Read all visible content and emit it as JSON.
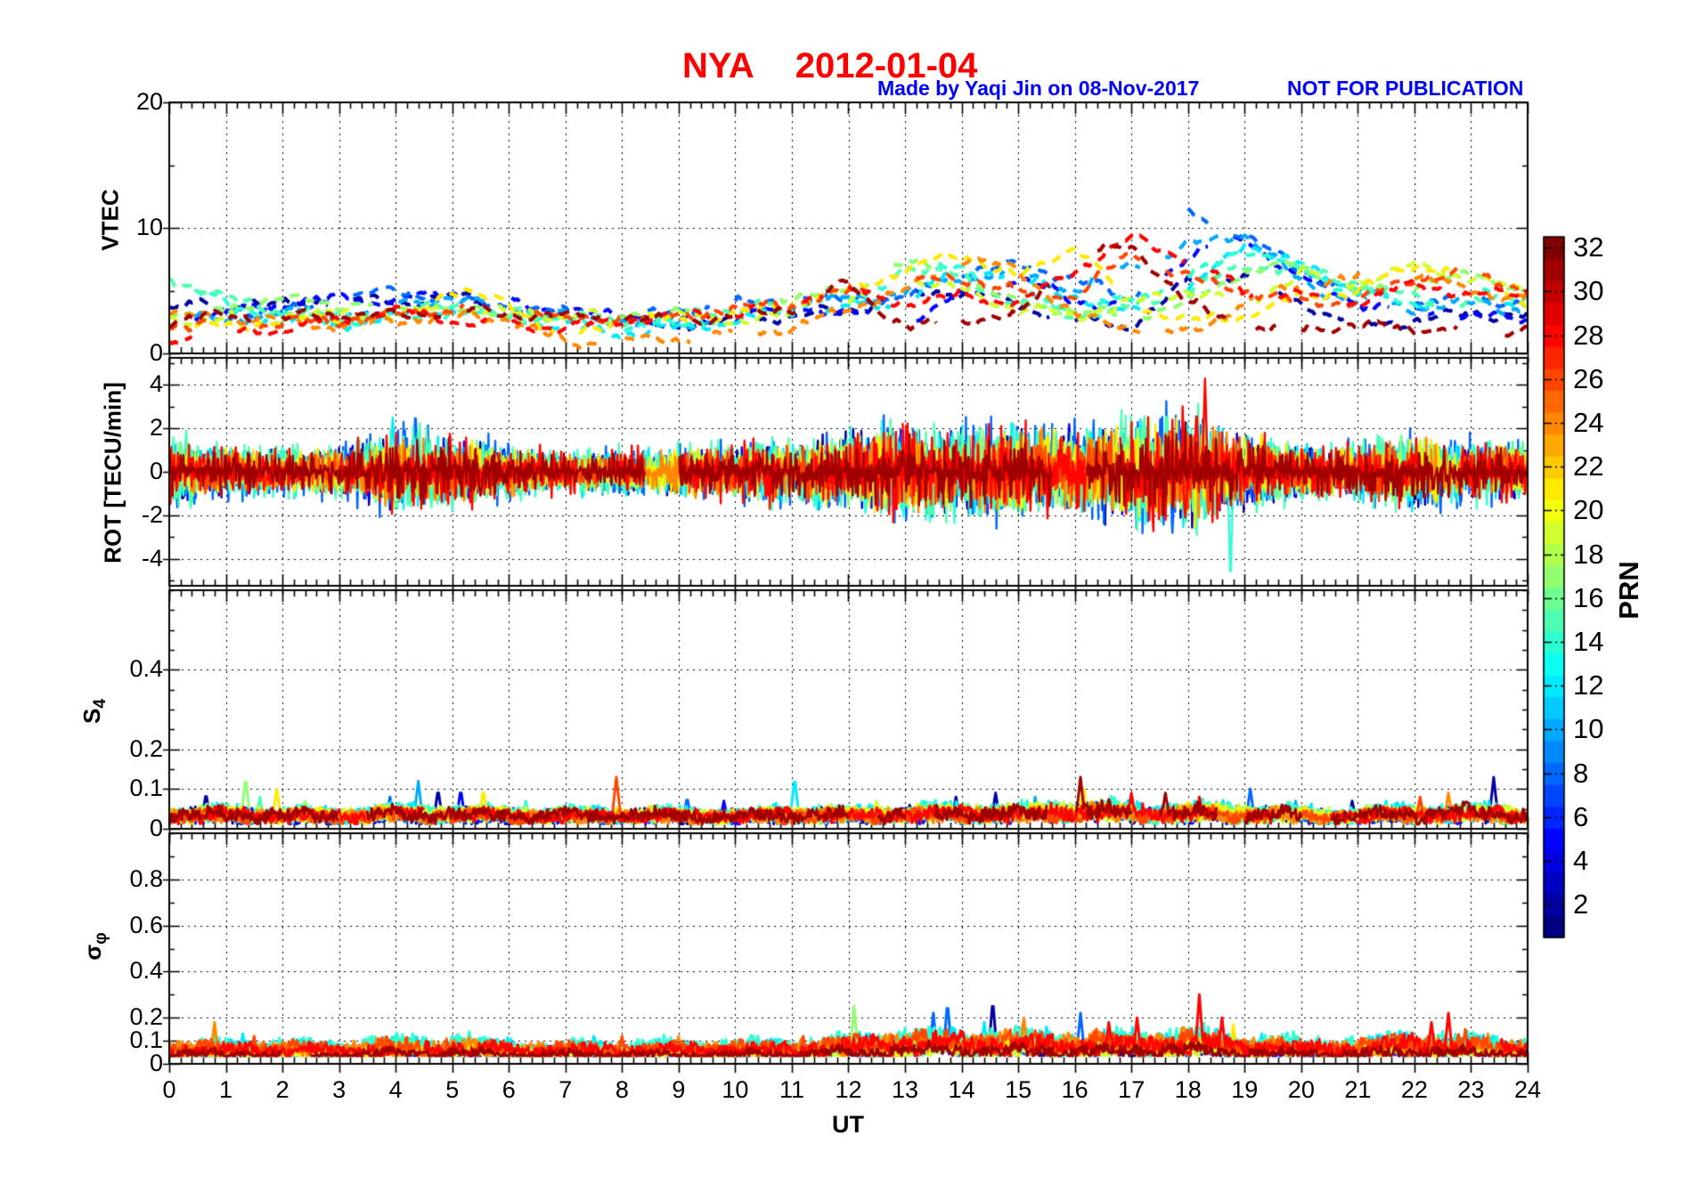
{
  "header": {
    "station": "NYA",
    "date": "2012-01-04",
    "credit": "Made by Yaqi Jin on 08-Nov-2017",
    "notice": "NOT FOR PUBLICATION"
  },
  "colors": {
    "title": "#ff0000",
    "annotation": "#0000ff",
    "axis": "#000000",
    "background": "#ffffff"
  },
  "chart_data": {
    "type": "line",
    "title": "NYA   2012-01-04",
    "station": "NYA",
    "date": "2012-01-04",
    "x": {
      "label": "UT",
      "min": 0,
      "max": 24,
      "tick_step": 1,
      "minor_step": 0.2,
      "tick_labels": [
        "0",
        "1",
        "2",
        "3",
        "4",
        "5",
        "6",
        "7",
        "8",
        "9",
        "10",
        "11",
        "12",
        "13",
        "14",
        "15",
        "16",
        "17",
        "18",
        "19",
        "20",
        "21",
        "22",
        "23",
        "24"
      ]
    },
    "colorbar": {
      "label": "PRN",
      "colormap": "jet",
      "levels": 32,
      "min": 1,
      "max": 32,
      "tick_values": [
        2,
        4,
        6,
        8,
        10,
        12,
        14,
        16,
        18,
        20,
        22,
        24,
        26,
        28,
        30,
        32
      ],
      "tick_labels": [
        "2",
        "4",
        "6",
        "8",
        "10",
        "12",
        "14",
        "16",
        "18",
        "20",
        "22",
        "24",
        "26",
        "28",
        "30",
        "32"
      ]
    },
    "panels": [
      {
        "key": "vtec",
        "ylabel": "VTEC",
        "ymin": 0,
        "ymax": 20,
        "yticks": [
          0,
          10,
          20
        ],
        "ytick_labels": [
          "0",
          "10",
          "20"
        ],
        "minor_step": 5,
        "grid": [
          10
        ],
        "line_style": "dashed"
      },
      {
        "key": "rot",
        "ylabel": "ROT [TECU/min]",
        "ymin": -5.25,
        "ymax": 5.25,
        "yticks": [
          -4,
          -2,
          0,
          2,
          4
        ],
        "ytick_labels": [
          "-4",
          "-2",
          "0",
          "2",
          "4"
        ],
        "minor_step": 1,
        "grid": [
          -4,
          -2,
          0,
          2,
          4
        ],
        "line_style": "solid"
      },
      {
        "key": "s4",
        "ylabel_main": "S",
        "ylabel_sub": "4",
        "ymin": 0,
        "ymax": 0.6,
        "yticks": [
          0,
          0.1,
          0.2,
          0.4
        ],
        "ytick_labels": [
          "0",
          "0.1",
          "0.2",
          "0.4"
        ],
        "minor_step": 0.05,
        "grid": [
          0.1,
          0.2,
          0.4
        ],
        "line_style": "solid"
      },
      {
        "key": "sigma",
        "ylabel_main": "σ",
        "ylabel_sub": "φ",
        "ymin": 0,
        "ymax": 1.0,
        "yticks": [
          0,
          0.1,
          0.2,
          0.4,
          0.6,
          0.8
        ],
        "ytick_labels": [
          "0",
          "0.1",
          "0.2",
          "0.4",
          "0.6",
          "0.8"
        ],
        "minor_step": 0.1,
        "grid": [
          0.1,
          0.2,
          0.4,
          0.6,
          0.8
        ],
        "line_style": "solid"
      }
    ],
    "hours": [
      0,
      1,
      2,
      3,
      4,
      5,
      6,
      7,
      8,
      9,
      10,
      11,
      12,
      13,
      14,
      15,
      16,
      17,
      18,
      19,
      20,
      21,
      22,
      23,
      24
    ],
    "series": [
      {
        "prn": 2,
        "vtec": [
          3.5,
          4.2,
          3.8,
          4.5,
          4.0,
          4.6,
          3.6,
          null,
          2.5,
          2.2,
          2.6,
          3.0,
          3.4,
          4.6,
          5.0,
          3.8,
          2.6,
          2.2,
          5.8,
          6.2,
          4.0,
          2.2,
          2.6,
          3.2,
          3.0
        ],
        "rot_scale": 1.1,
        "s4_lvl": 0.9,
        "sig_lvl": 0.85
      },
      {
        "prn": 5,
        "vtec": [
          2.8,
          3.2,
          4.0,
          4.4,
          4.2,
          4.8,
          4.0,
          3.4,
          3.0,
          2.6,
          3.0,
          3.8,
          3.2,
          2.6,
          4.6,
          6.0,
          4.2,
          3.6,
          8.0,
          9.0,
          6.0,
          4.0,
          3.4,
          3.0,
          2.6
        ],
        "rot_scale": 1.0,
        "s4_lvl": 0.9,
        "sig_lvl": 0.85
      },
      {
        "prn": 8,
        "vtec": [
          4.0,
          3.6,
          3.2,
          4.4,
          5.0,
          4.2,
          3.8,
          3.2,
          2.8,
          3.4,
          4.0,
          4.4,
          4.2,
          4.4,
          6.6,
          7.0,
          6.0,
          4.2,
          11.0,
          9.5,
          6.5,
          5.0,
          4.2,
          4.4,
          4.0
        ],
        "rot_scale": 1.3,
        "s4_lvl": 0.9,
        "sig_lvl": 0.95
      },
      {
        "prn": 10,
        "vtec": [
          3.0,
          2.6,
          3.4,
          3.0,
          4.0,
          4.4,
          3.6,
          3.0,
          2.6,
          2.2,
          3.0,
          3.6,
          4.4,
          5.0,
          6.0,
          6.4,
          5.0,
          7.0,
          8.5,
          9.6,
          5.6,
          4.0,
          3.6,
          4.0,
          3.4
        ],
        "rot_scale": 0.9,
        "s4_lvl": 0.9,
        "sig_lvl": 1.0
      },
      {
        "prn": 12,
        "vtec": [
          5.0,
          3.0,
          2.6,
          2.2,
          3.0,
          3.6,
          2.6,
          2.2,
          1.6,
          2.0,
          2.6,
          3.0,
          3.6,
          4.0,
          7.0,
          6.0,
          4.6,
          3.2,
          5.0,
          8.8,
          7.0,
          5.0,
          4.0,
          4.4,
          4.0
        ],
        "rot_scale": 1.1,
        "s4_lvl": 1.1,
        "sig_lvl": 1.2
      },
      {
        "prn": 14,
        "vtec": [
          5.6,
          4.0,
          3.0,
          2.6,
          2.8,
          3.2,
          3.0,
          2.6,
          2.0,
          2.4,
          3.0,
          3.4,
          4.0,
          6.6,
          7.0,
          5.0,
          3.6,
          4.4,
          6.0,
          8.4,
          6.6,
          5.0,
          4.0,
          5.0,
          5.4
        ],
        "rot_scale": 1.2,
        "s4_lvl": 1.1,
        "sig_lvl": 1.3
      },
      {
        "prn": 15,
        "vtec": [
          6.0,
          4.4,
          3.4,
          3.0,
          3.4,
          4.0,
          3.4,
          3.0,
          2.6,
          3.0,
          3.6,
          4.0,
          4.6,
          7.0,
          6.0,
          4.0,
          3.0,
          3.6,
          5.0,
          7.0,
          6.6,
          5.6,
          4.4,
          4.0,
          4.6
        ],
        "rot_scale": 1.3,
        "s4_lvl": 1.0,
        "sig_lvl": 1.0
      },
      {
        "prn": 17,
        "vtec": [
          3.0,
          3.6,
          4.4,
          4.0,
          3.8,
          3.4,
          3.0,
          2.6,
          3.0,
          3.6,
          4.0,
          4.6,
          5.0,
          7.4,
          6.0,
          4.0,
          3.4,
          3.0,
          4.0,
          6.6,
          7.0,
          5.0,
          5.6,
          6.2,
          5.0
        ],
        "rot_scale": 1.0,
        "s4_lvl": 1.0,
        "sig_lvl": 0.9
      },
      {
        "prn": 19,
        "vtec": [
          2.6,
          2.8,
          3.0,
          3.2,
          3.0,
          3.6,
          3.2,
          3.0,
          3.4,
          3.0,
          2.6,
          3.0,
          4.0,
          6.0,
          5.0,
          3.6,
          3.0,
          4.0,
          5.0,
          4.0,
          6.4,
          5.6,
          7.0,
          6.0,
          5.0
        ],
        "rot_scale": 0.9,
        "s4_lvl": 1.0,
        "sig_lvl": 0.8
      },
      {
        "prn": 21,
        "vtec": [
          2.0,
          2.2,
          2.6,
          2.8,
          3.0,
          5.0,
          4.0,
          1.0,
          2.8,
          2.6,
          3.0,
          4.0,
          5.0,
          6.6,
          8.0,
          6.0,
          8.6,
          4.0,
          2.6,
          3.0,
          4.6,
          5.0,
          7.0,
          6.4,
          4.0
        ],
        "rot_scale": 1.0,
        "s4_lvl": 1.0,
        "sig_lvl": 0.9
      },
      {
        "prn": 24,
        "vtec": [
          3.0,
          2.8,
          2.6,
          2.2,
          2.6,
          3.0,
          2.8,
          0.8,
          1.0,
          1.2,
          1.6,
          2.0,
          3.6,
          5.0,
          7.6,
          6.6,
          3.0,
          2.0,
          1.6,
          4.0,
          5.6,
          6.0,
          6.2,
          5.0,
          4.4
        ],
        "rot_scale": 1.0,
        "s4_lvl": 0.9,
        "sig_lvl": 1.1
      },
      {
        "prn": 26,
        "vtec": [
          2.2,
          2.0,
          2.4,
          2.6,
          3.0,
          3.6,
          4.4,
          2.6,
          2.8,
          3.0,
          3.6,
          4.0,
          4.8,
          5.6,
          6.0,
          5.0,
          4.6,
          8.0,
          6.0,
          5.0,
          4.0,
          4.2,
          6.0,
          6.4,
          5.0
        ],
        "rot_scale": 0.9,
        "s4_lvl": 0.9,
        "sig_lvl": 1.15
      },
      {
        "prn": 28,
        "vtec": [
          1.2,
          1.6,
          2.0,
          2.6,
          3.4,
          2.6,
          2.2,
          2.0,
          2.6,
          3.0,
          3.2,
          4.4,
          5.0,
          4.0,
          4.6,
          4.0,
          6.6,
          9.2,
          7.6,
          5.0,
          4.6,
          4.0,
          5.6,
          4.6,
          5.0
        ],
        "rot_scale": 1.2,
        "s4_lvl": 0.95,
        "sig_lvl": 1.05
      },
      {
        "prn": 31,
        "vtec": [
          2.6,
          3.0,
          2.8,
          3.2,
          3.0,
          3.4,
          3.2,
          3.0,
          2.8,
          2.6,
          3.0,
          3.6,
          5.6,
          2.0,
          2.6,
          3.0,
          7.6,
          8.6,
          4.0,
          2.0,
          2.0,
          2.2,
          2.0,
          1.8,
          2.0
        ],
        "rot_scale": 0.9,
        "s4_lvl": 1.0,
        "sig_lvl": 0.7
      }
    ],
    "activity": {
      "rot": [
        0.7,
        0.55,
        0.5,
        0.55,
        0.9,
        0.8,
        0.6,
        0.45,
        0.5,
        0.55,
        0.6,
        0.75,
        0.85,
        1.1,
        1.0,
        1.05,
        1.0,
        1.15,
        1.3,
        0.85,
        0.6,
        0.65,
        0.85,
        0.7,
        0.6
      ],
      "s4": [
        0.05,
        0.055,
        0.05,
        0.048,
        0.055,
        0.055,
        0.05,
        0.05,
        0.05,
        0.05,
        0.047,
        0.054,
        0.05,
        0.055,
        0.058,
        0.055,
        0.068,
        0.06,
        0.058,
        0.058,
        0.05,
        0.05,
        0.054,
        0.058,
        0.05
      ],
      "sigma": [
        0.085,
        0.085,
        0.082,
        0.08,
        0.095,
        0.095,
        0.085,
        0.08,
        0.08,
        0.083,
        0.08,
        0.088,
        0.1,
        0.12,
        0.12,
        0.115,
        0.115,
        0.115,
        0.125,
        0.1,
        0.09,
        0.09,
        0.115,
        0.1,
        0.09
      ]
    },
    "spikes": {
      "rot": [
        [
          0.2,
          15,
          1.5
        ],
        [
          0.3,
          15,
          1.9
        ],
        [
          0.38,
          15,
          -1.8
        ],
        [
          1.0,
          21,
          1.2
        ],
        [
          2.6,
          12,
          -1.1
        ],
        [
          3.95,
          12,
          2.6
        ],
        [
          4.35,
          8,
          2.8
        ],
        [
          4.75,
          12,
          1.7
        ],
        [
          5.35,
          21,
          1.5
        ],
        [
          5.5,
          31,
          -1.2
        ],
        [
          7.3,
          12,
          -1.3
        ],
        [
          9.3,
          24,
          -1.2
        ],
        [
          10.4,
          26,
          1.1
        ],
        [
          11.35,
          28,
          1.5
        ],
        [
          12.2,
          17,
          1.8
        ],
        [
          13.0,
          8,
          -1.4
        ],
        [
          13.55,
          8,
          2.3
        ],
        [
          13.75,
          8,
          2.4
        ],
        [
          14.1,
          2,
          -1.7
        ],
        [
          14.5,
          12,
          -1.4
        ],
        [
          15.0,
          5,
          2.2
        ],
        [
          15.35,
          5,
          -1.9
        ],
        [
          15.9,
          5,
          2.2
        ],
        [
          16.2,
          14,
          -1.5
        ],
        [
          16.8,
          28,
          1.6
        ],
        [
          17.3,
          28,
          -1.8
        ],
        [
          17.6,
          31,
          -1.6
        ],
        [
          17.95,
          28,
          -2.2
        ],
        [
          18.15,
          28,
          2.9
        ],
        [
          18.3,
          28,
          4.3
        ],
        [
          18.55,
          28,
          -1.8
        ],
        [
          18.75,
          14,
          -5.2
        ],
        [
          19.0,
          19,
          1.8
        ],
        [
          19.3,
          21,
          1.9
        ],
        [
          20.1,
          12,
          1.3
        ],
        [
          21.3,
          10,
          1.2
        ],
        [
          22.1,
          19,
          1.6
        ],
        [
          22.4,
          21,
          1.4
        ],
        [
          22.75,
          28,
          2.3
        ],
        [
          23.6,
          26,
          1.2
        ]
      ],
      "s4": [
        [
          0.65,
          2,
          0.09
        ],
        [
          1.35,
          17,
          0.13
        ],
        [
          1.6,
          15,
          0.08
        ],
        [
          1.9,
          21,
          0.1
        ],
        [
          2.4,
          17,
          0.07
        ],
        [
          3.9,
          8,
          0.08
        ],
        [
          4.4,
          10,
          0.12
        ],
        [
          4.75,
          2,
          0.1
        ],
        [
          5.15,
          5,
          0.1
        ],
        [
          5.55,
          21,
          0.1
        ],
        [
          6.3,
          14,
          0.07
        ],
        [
          7.9,
          26,
          0.13
        ],
        [
          9.15,
          8,
          0.08
        ],
        [
          9.8,
          5,
          0.07
        ],
        [
          11.05,
          12,
          0.13
        ],
        [
          12.5,
          19,
          0.07
        ],
        [
          13.3,
          14,
          0.07
        ],
        [
          13.9,
          2,
          0.08
        ],
        [
          14.6,
          2,
          0.09
        ],
        [
          15.3,
          10,
          0.08
        ],
        [
          16.1,
          31,
          0.13
        ],
        [
          16.15,
          21,
          0.11
        ],
        [
          17.0,
          28,
          0.09
        ],
        [
          17.6,
          31,
          0.09
        ],
        [
          18.2,
          28,
          0.08
        ],
        [
          19.1,
          8,
          0.1
        ],
        [
          19.9,
          10,
          0.07
        ],
        [
          20.9,
          2,
          0.07
        ],
        [
          21.5,
          12,
          0.07
        ],
        [
          22.1,
          26,
          0.08
        ],
        [
          22.6,
          24,
          0.09
        ],
        [
          23.4,
          2,
          0.13
        ]
      ],
      "sigma": [
        [
          0.8,
          24,
          0.18
        ],
        [
          1.3,
          12,
          0.13
        ],
        [
          1.5,
          26,
          0.12
        ],
        [
          2.2,
          14,
          0.11
        ],
        [
          3.9,
          5,
          0.12
        ],
        [
          4.3,
          14,
          0.13
        ],
        [
          5.0,
          10,
          0.12
        ],
        [
          5.3,
          14,
          0.14
        ],
        [
          6.3,
          14,
          0.13
        ],
        [
          7.5,
          12,
          0.12
        ],
        [
          8.0,
          26,
          0.12
        ],
        [
          9.0,
          24,
          0.12
        ],
        [
          10.4,
          14,
          0.12
        ],
        [
          11.2,
          26,
          0.12
        ],
        [
          12.1,
          17,
          0.25
        ],
        [
          12.9,
          14,
          0.14
        ],
        [
          13.5,
          8,
          0.22
        ],
        [
          13.75,
          8,
          0.27
        ],
        [
          14.4,
          12,
          0.18
        ],
        [
          14.55,
          2,
          0.28
        ],
        [
          15.1,
          24,
          0.2
        ],
        [
          15.5,
          12,
          0.16
        ],
        [
          16.1,
          8,
          0.22
        ],
        [
          16.6,
          28,
          0.18
        ],
        [
          17.1,
          28,
          0.2
        ],
        [
          17.9,
          8,
          0.15
        ],
        [
          18.2,
          28,
          0.3
        ],
        [
          18.6,
          28,
          0.2
        ],
        [
          18.8,
          21,
          0.17
        ],
        [
          19.3,
          12,
          0.13
        ],
        [
          20.3,
          14,
          0.12
        ],
        [
          21.2,
          12,
          0.12
        ],
        [
          22.3,
          28,
          0.18
        ],
        [
          22.6,
          28,
          0.22
        ],
        [
          22.9,
          26,
          0.15
        ],
        [
          23.3,
          24,
          0.13
        ]
      ]
    }
  }
}
